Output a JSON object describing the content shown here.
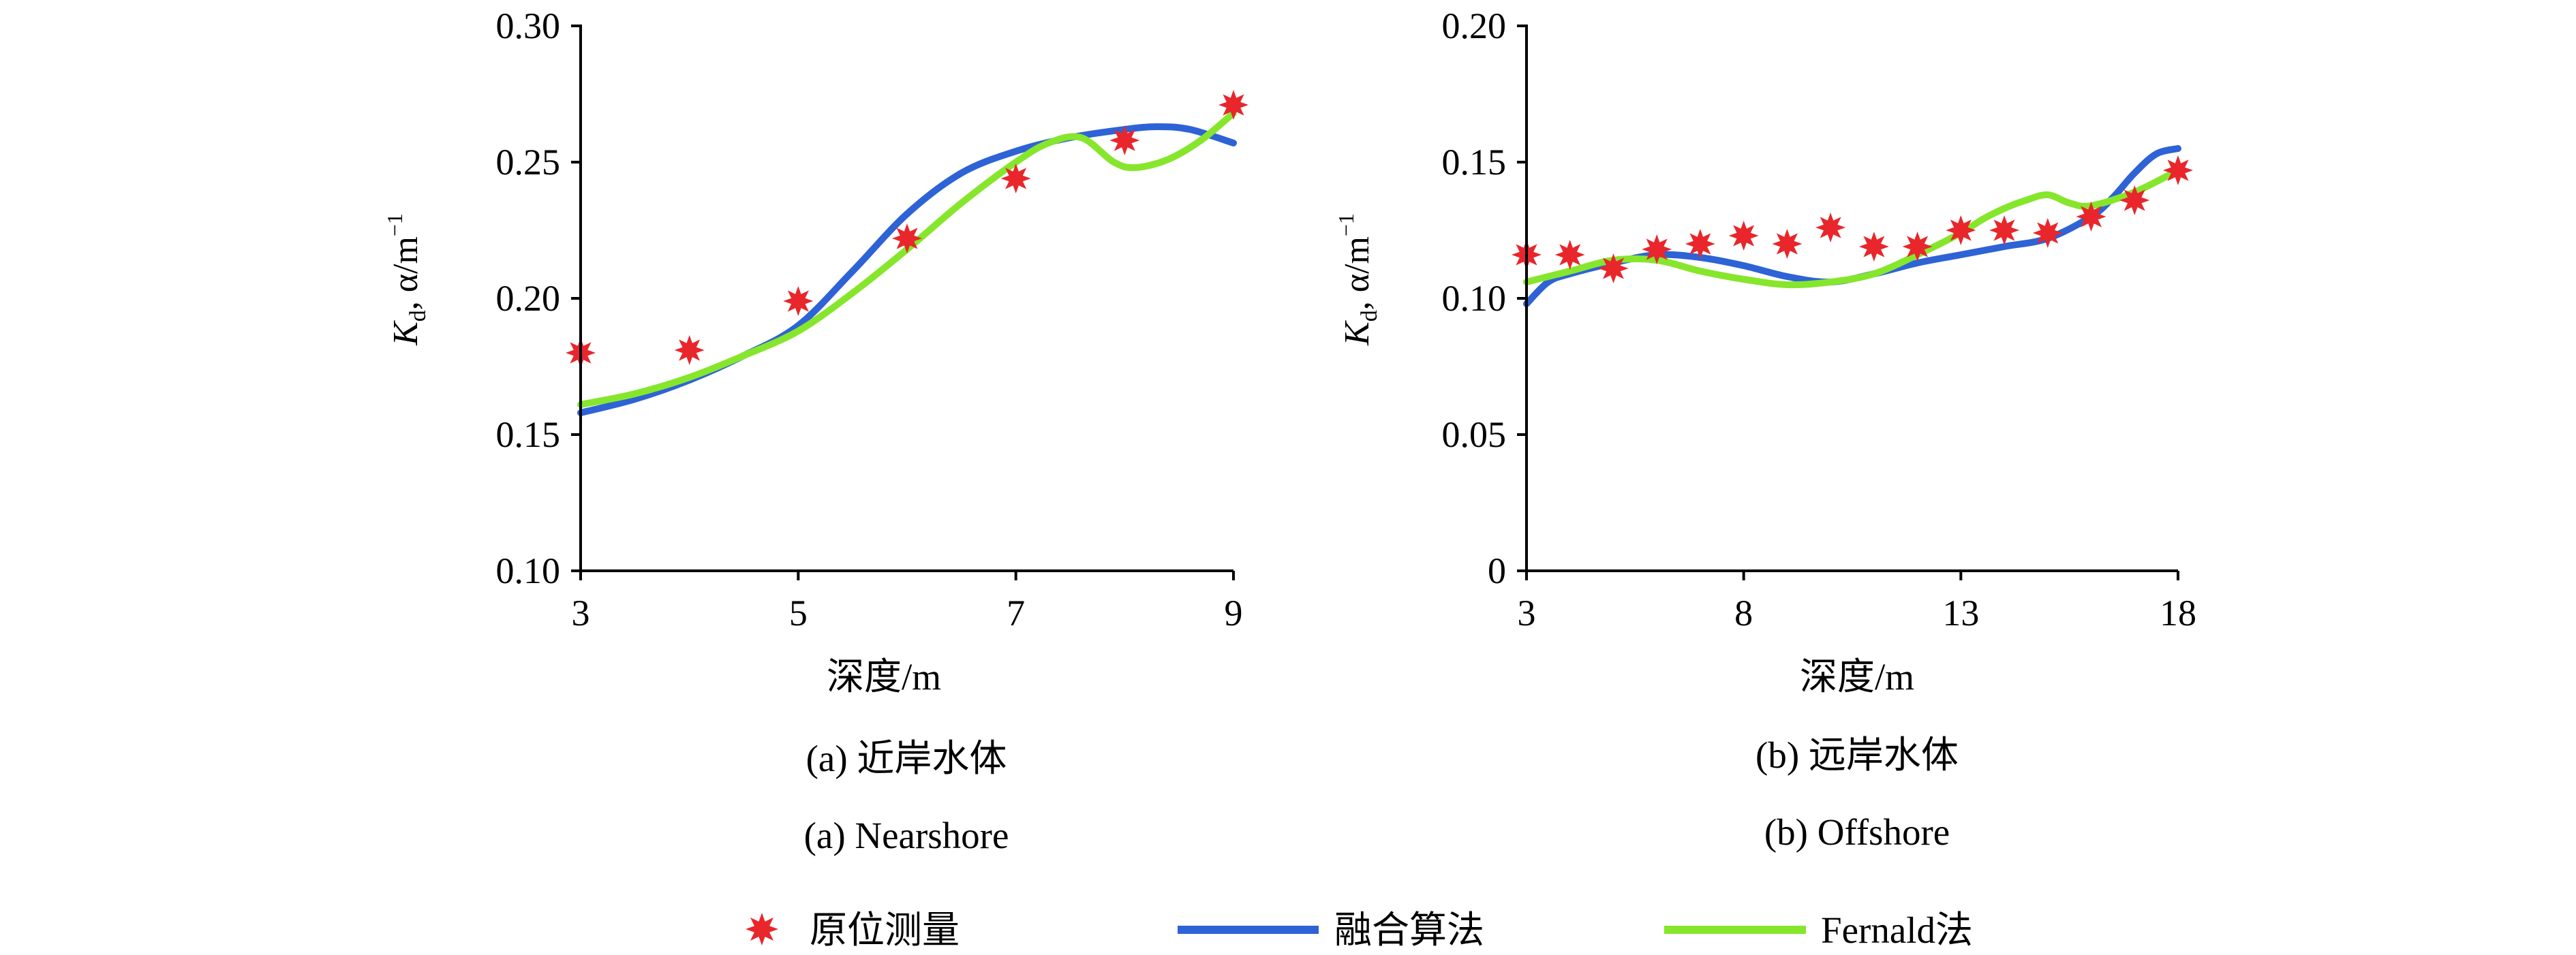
{
  "colors": {
    "measured": "#e8262b",
    "fusion": "#2e63d6",
    "fernald": "#86e62c",
    "axis": "#000000"
  },
  "legend": [
    {
      "key": "measured",
      "label": "原位测量",
      "icon": "star-marker-icon"
    },
    {
      "key": "fusion",
      "label": "融合算法",
      "icon": "line-swatch-icon"
    },
    {
      "key": "fernald",
      "label": "Fernald法",
      "icon": "line-swatch-icon"
    }
  ],
  "chart_data": [
    {
      "type": "line",
      "id": "a",
      "caption_cn": "(a) 近岸水体",
      "caption_en": "(a) Nearshore",
      "xlabel": "深度/m",
      "ylabel": {
        "main": "K",
        "sub": "d",
        "rest": ", α/m",
        "sup": "−1"
      },
      "xlim": [
        3,
        9
      ],
      "ylim": [
        0.1,
        0.3
      ],
      "xticks": [
        3,
        5,
        7,
        9
      ],
      "yticks": [
        0.1,
        0.15,
        0.2,
        0.25,
        0.3
      ],
      "ytick_labels": [
        "0.10",
        "0.15",
        "0.20",
        "0.25",
        "0.30"
      ],
      "series": [
        {
          "name": "原位测量",
          "key": "measured",
          "kind": "scatter",
          "x": [
            3,
            4,
            5,
            6,
            7,
            8,
            9
          ],
          "y": [
            0.18,
            0.181,
            0.199,
            0.222,
            0.244,
            0.258,
            0.271
          ]
        },
        {
          "name": "融合算法",
          "key": "fusion",
          "kind": "line",
          "x": [
            3,
            3.5,
            4,
            4.5,
            5,
            5.5,
            6,
            6.5,
            7,
            7.5,
            8,
            8.3,
            8.6,
            9
          ],
          "y": [
            0.158,
            0.163,
            0.17,
            0.179,
            0.19,
            0.21,
            0.231,
            0.246,
            0.254,
            0.259,
            0.262,
            0.263,
            0.262,
            0.257
          ]
        },
        {
          "name": "Fernald法",
          "key": "fernald",
          "kind": "line",
          "x": [
            3,
            3.5,
            4,
            4.5,
            5,
            5.5,
            6,
            6.5,
            7,
            7.3,
            7.6,
            7.9,
            8.1,
            8.4,
            8.7,
            9
          ],
          "y": [
            0.161,
            0.165,
            0.171,
            0.179,
            0.188,
            0.202,
            0.218,
            0.235,
            0.25,
            0.257,
            0.259,
            0.25,
            0.248,
            0.251,
            0.258,
            0.268
          ]
        }
      ]
    },
    {
      "type": "line",
      "id": "b",
      "caption_cn": "(b) 远岸水体",
      "caption_en": "(b) Offshore",
      "xlabel": "深度/m",
      "ylabel": {
        "main": "K",
        "sub": "d",
        "rest": ", α/m",
        "sup": "−1"
      },
      "xlim": [
        3,
        18
      ],
      "ylim": [
        0,
        0.2
      ],
      "xticks": [
        3,
        8,
        13,
        18
      ],
      "yticks": [
        0,
        0.05,
        0.1,
        0.15,
        0.2
      ],
      "ytick_labels": [
        "0",
        "0.05",
        "0.10",
        "0.15",
        "0.20"
      ],
      "series": [
        {
          "name": "原位测量",
          "key": "measured",
          "kind": "scatter",
          "x": [
            3,
            4,
            5,
            6,
            7,
            8,
            9,
            10,
            11,
            12,
            13,
            14,
            15,
            16,
            17,
            18
          ],
          "y": [
            0.116,
            0.116,
            0.111,
            0.118,
            0.12,
            0.123,
            0.12,
            0.126,
            0.119,
            0.119,
            0.125,
            0.125,
            0.124,
            0.13,
            0.136,
            0.147
          ]
        },
        {
          "name": "融合算法",
          "key": "fusion",
          "kind": "line",
          "x": [
            3,
            3.5,
            4,
            5,
            6,
            7,
            8,
            9,
            10,
            11,
            12,
            13,
            14,
            15,
            16,
            16.5,
            17,
            17.5,
            18
          ],
          "y": [
            0.098,
            0.106,
            0.109,
            0.113,
            0.116,
            0.115,
            0.112,
            0.108,
            0.106,
            0.109,
            0.113,
            0.116,
            0.119,
            0.122,
            0.13,
            0.137,
            0.146,
            0.153,
            0.155
          ]
        },
        {
          "name": "Fernald法",
          "key": "fernald",
          "kind": "line",
          "x": [
            3,
            4,
            5,
            6,
            7,
            8,
            9,
            10,
            11,
            12,
            13,
            13.5,
            14,
            14.5,
            15,
            15.5,
            16,
            17,
            18
          ],
          "y": [
            0.106,
            0.11,
            0.114,
            0.114,
            0.11,
            0.107,
            0.105,
            0.106,
            0.109,
            0.116,
            0.124,
            0.129,
            0.133,
            0.136,
            0.138,
            0.135,
            0.134,
            0.139,
            0.147
          ]
        }
      ]
    }
  ]
}
